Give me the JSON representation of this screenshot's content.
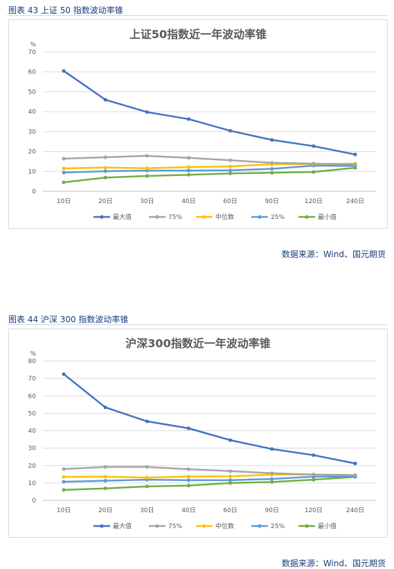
{
  "colors": {
    "max": "#4472c4",
    "p75": "#a5a5a5",
    "median": "#ffc000",
    "p25": "#5b9bd5",
    "min": "#70ad47",
    "grid": "#d9d9d9",
    "caption": "#1a3d7c"
  },
  "figures": [
    {
      "caption": "图表 43  上证 50 指数波动率锥",
      "source": "数据来源：Wind、国元期货"
    },
    {
      "caption": "图表 44  沪深 300 指数波动率锥",
      "source": "数据来源：Wind、国元期货"
    }
  ],
  "chart_data": [
    {
      "type": "line",
      "title": "上证50指数近一年波动率锥",
      "unit": "%",
      "ylim": [
        0,
        70
      ],
      "yticks": [
        0,
        10,
        20,
        30,
        40,
        50,
        60,
        70
      ],
      "grid": true,
      "legend": "bottom",
      "categories": [
        "10日",
        "20日",
        "30日",
        "40日",
        "60日",
        "90日",
        "120日",
        "240日"
      ],
      "series": [
        {
          "name": "最大值",
          "color": "#4472c4",
          "values": [
            60.5,
            46.0,
            39.8,
            36.3,
            30.4,
            25.8,
            22.7,
            18.5
          ]
        },
        {
          "name": "75%",
          "color": "#a5a5a5",
          "values": [
            16.4,
            17.1,
            17.8,
            16.8,
            15.6,
            14.3,
            13.9,
            13.4
          ]
        },
        {
          "name": "中位数",
          "color": "#ffc000",
          "values": [
            11.5,
            11.9,
            11.6,
            12.2,
            12.5,
            13.6,
            13.7,
            13.9
          ]
        },
        {
          "name": "25%",
          "color": "#5b9bd5",
          "values": [
            9.4,
            10.1,
            10.4,
            10.4,
            10.5,
            11.3,
            12.9,
            12.7
          ]
        },
        {
          "name": "最小值",
          "color": "#70ad47",
          "values": [
            4.5,
            6.9,
            7.7,
            8.3,
            9.0,
            9.3,
            9.7,
            11.8
          ]
        }
      ]
    },
    {
      "type": "line",
      "title": "沪深300指数近一年波动率锥",
      "unit": "%",
      "ylim": [
        0,
        80
      ],
      "yticks": [
        0,
        10,
        20,
        30,
        40,
        50,
        60,
        70,
        80
      ],
      "grid": true,
      "legend": "bottom",
      "categories": [
        "10日",
        "20日",
        "30日",
        "40日",
        "60日",
        "90日",
        "120日",
        "240日"
      ],
      "series": [
        {
          "name": "最大值",
          "color": "#4472c4",
          "values": [
            72.5,
            53.4,
            45.4,
            41.4,
            34.6,
            29.5,
            26.0,
            21.2
          ]
        },
        {
          "name": "75%",
          "color": "#a5a5a5",
          "values": [
            18.0,
            19.2,
            19.2,
            17.9,
            16.8,
            15.6,
            14.8,
            14.5
          ]
        },
        {
          "name": "中位数",
          "color": "#ffc000",
          "values": [
            13.5,
            13.6,
            13.1,
            13.7,
            13.8,
            14.8,
            14.9,
            14.5
          ]
        },
        {
          "name": "25%",
          "color": "#5b9bd5",
          "values": [
            10.7,
            11.3,
            11.9,
            11.6,
            11.6,
            12.3,
            13.6,
            13.6
          ]
        },
        {
          "name": "最小值",
          "color": "#70ad47",
          "values": [
            6.0,
            6.9,
            8.0,
            8.5,
            10.0,
            10.6,
            11.9,
            13.5
          ]
        }
      ]
    }
  ]
}
